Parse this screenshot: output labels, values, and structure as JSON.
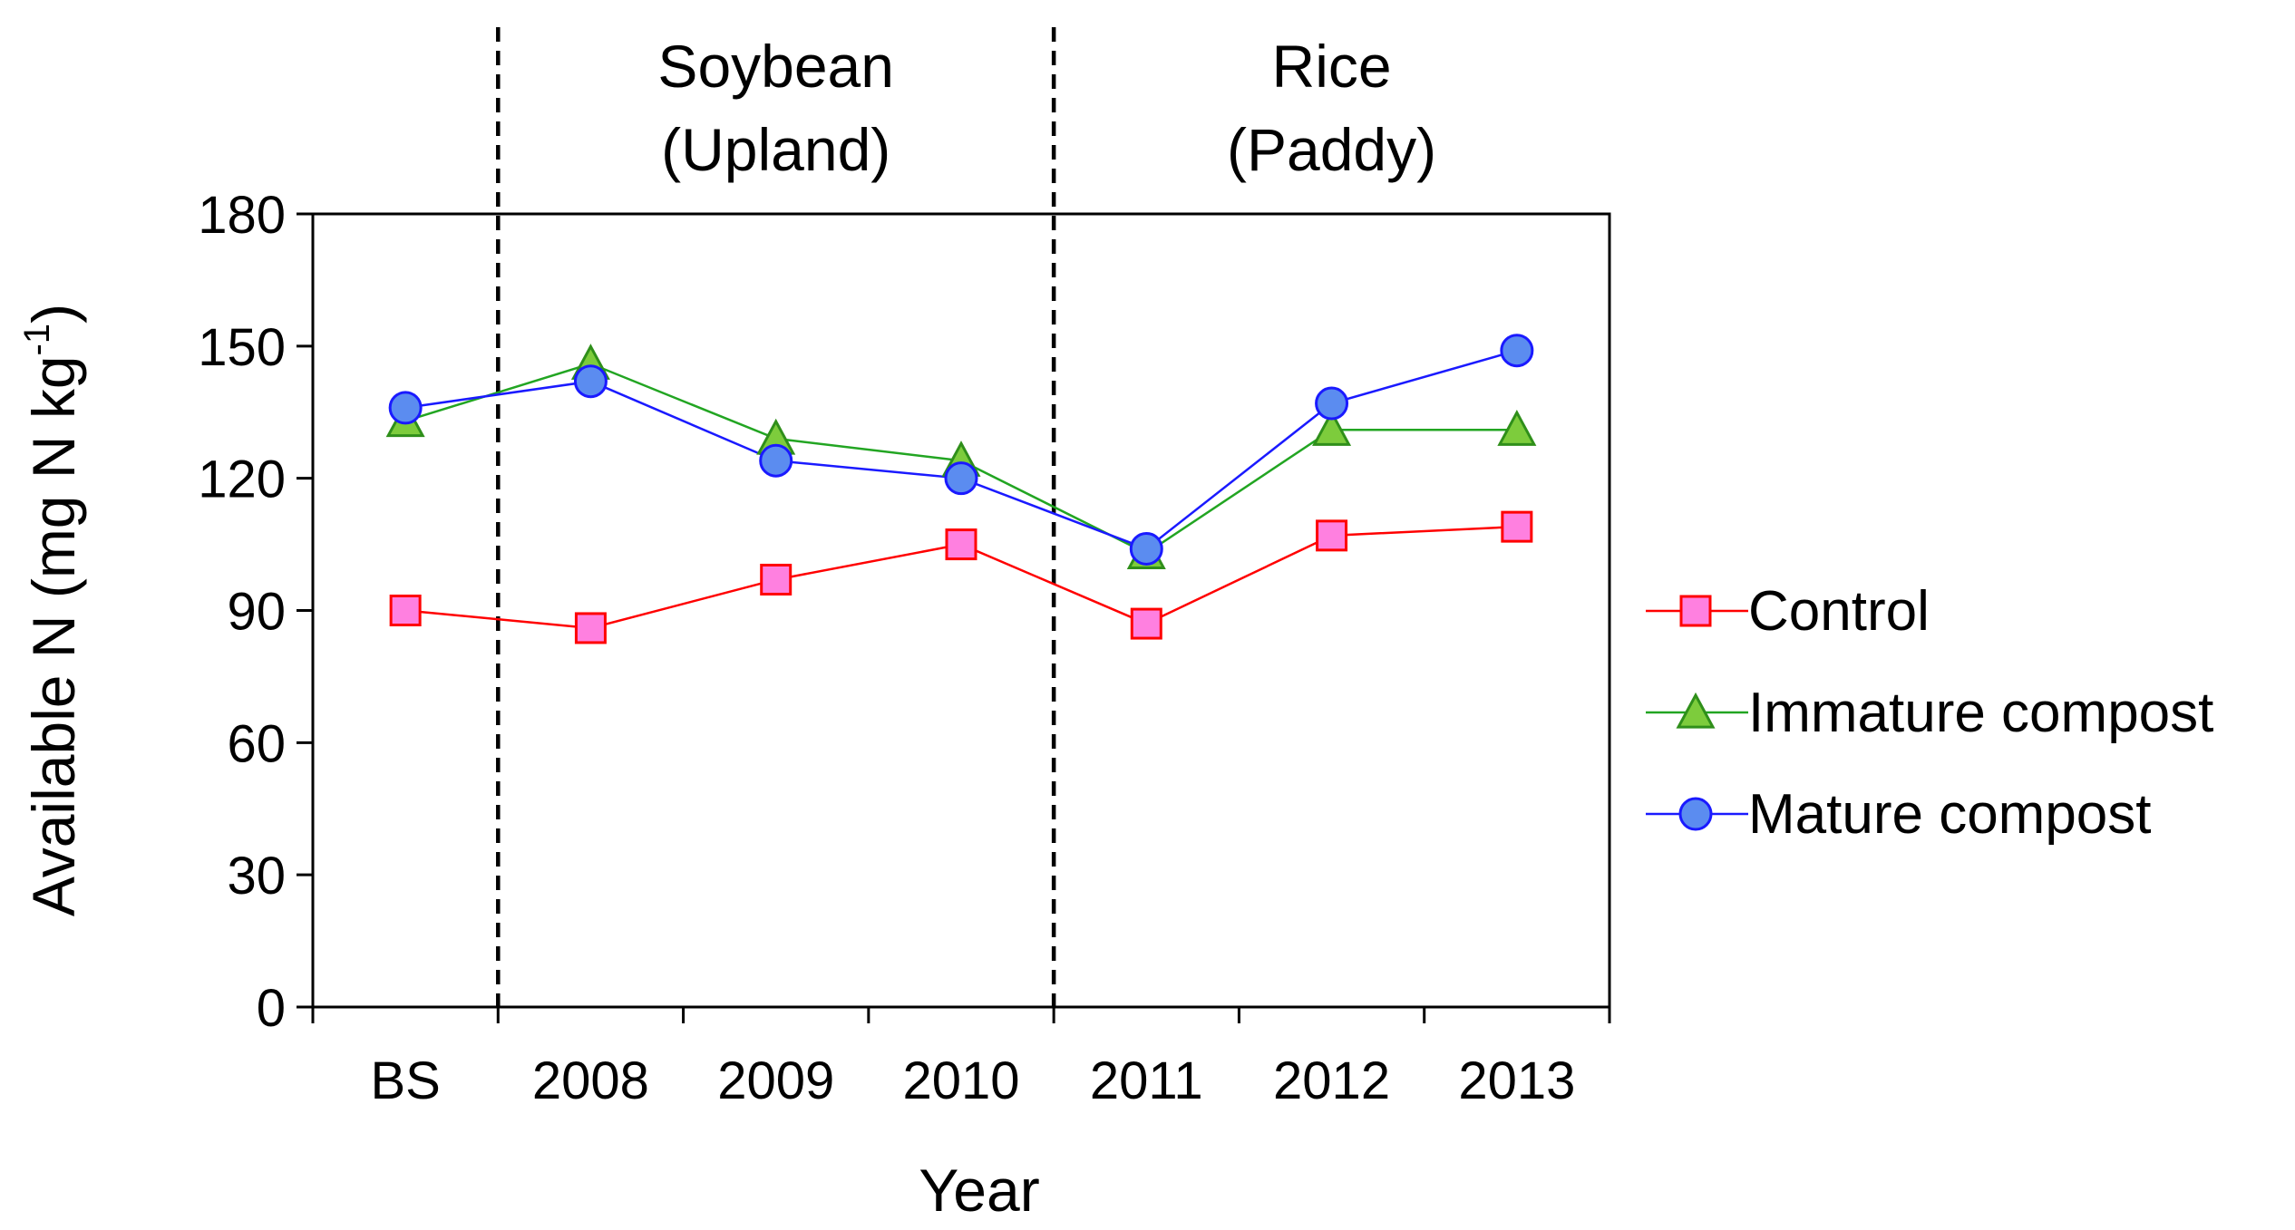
{
  "chart_data": {
    "type": "line",
    "categories": [
      "BS",
      "2008",
      "2009",
      "2010",
      "2011",
      "2012",
      "2013"
    ],
    "xlabel": "Year",
    "ylabel": {
      "main": "Available N (mg N kg",
      "sup": "-1",
      "close": ")"
    },
    "ylim": [
      0,
      180
    ],
    "yticks": [
      "0",
      "30",
      "60",
      "90",
      "120",
      "150",
      "180"
    ],
    "grid": false,
    "legend_position": "right",
    "period_dividers_after": [
      0,
      3
    ],
    "period_labels": [
      {
        "line1": "Soybean",
        "line2": "(Upland)",
        "span": [
          1,
          3
        ]
      },
      {
        "line1": "Rice",
        "line2": "(Paddy)",
        "span": [
          4,
          6
        ]
      }
    ],
    "series": [
      {
        "name": "Control",
        "marker": "square",
        "line_color": "#ff0000",
        "fill_color": "#ff80e0",
        "stroke_color": "#ff0000",
        "values": [
          90,
          86,
          97,
          105,
          87,
          107,
          109
        ]
      },
      {
        "name": "Immature compost",
        "marker": "triangle",
        "line_color": "#22a522",
        "fill_color": "#7dcc3c",
        "stroke_color": "#2f8f1a",
        "values": [
          133,
          146,
          129,
          124,
          103,
          131,
          131
        ]
      },
      {
        "name": "Mature compost",
        "marker": "circle",
        "line_color": "#1a1aff",
        "fill_color": "#5b8cf0",
        "stroke_color": "#1a1aff",
        "values": [
          136,
          142,
          124,
          120,
          104,
          137,
          149
        ]
      }
    ]
  }
}
